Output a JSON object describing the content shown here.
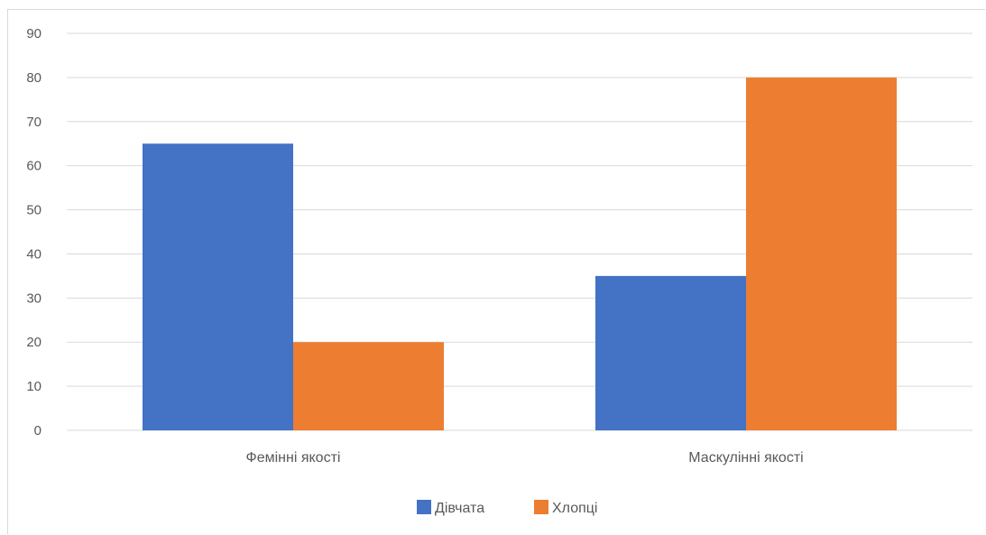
{
  "chart_data": {
    "type": "bar",
    "categories": [
      "Фемінні якості",
      "Маскулінні якості"
    ],
    "series": [
      {
        "name": "Дівчата",
        "values": [
          65,
          35
        ],
        "color": "#4472C4"
      },
      {
        "name": "Хлопці",
        "values": [
          20,
          80
        ],
        "color": "#ED7D31"
      }
    ],
    "ylim": [
      0,
      90
    ],
    "yticks": [
      0,
      10,
      20,
      30,
      40,
      50,
      60,
      70,
      80,
      90
    ],
    "grid": true,
    "legend_position": "bottom",
    "gridline_color": "#d9d9d9",
    "axis_color": "#d9d9d9"
  }
}
